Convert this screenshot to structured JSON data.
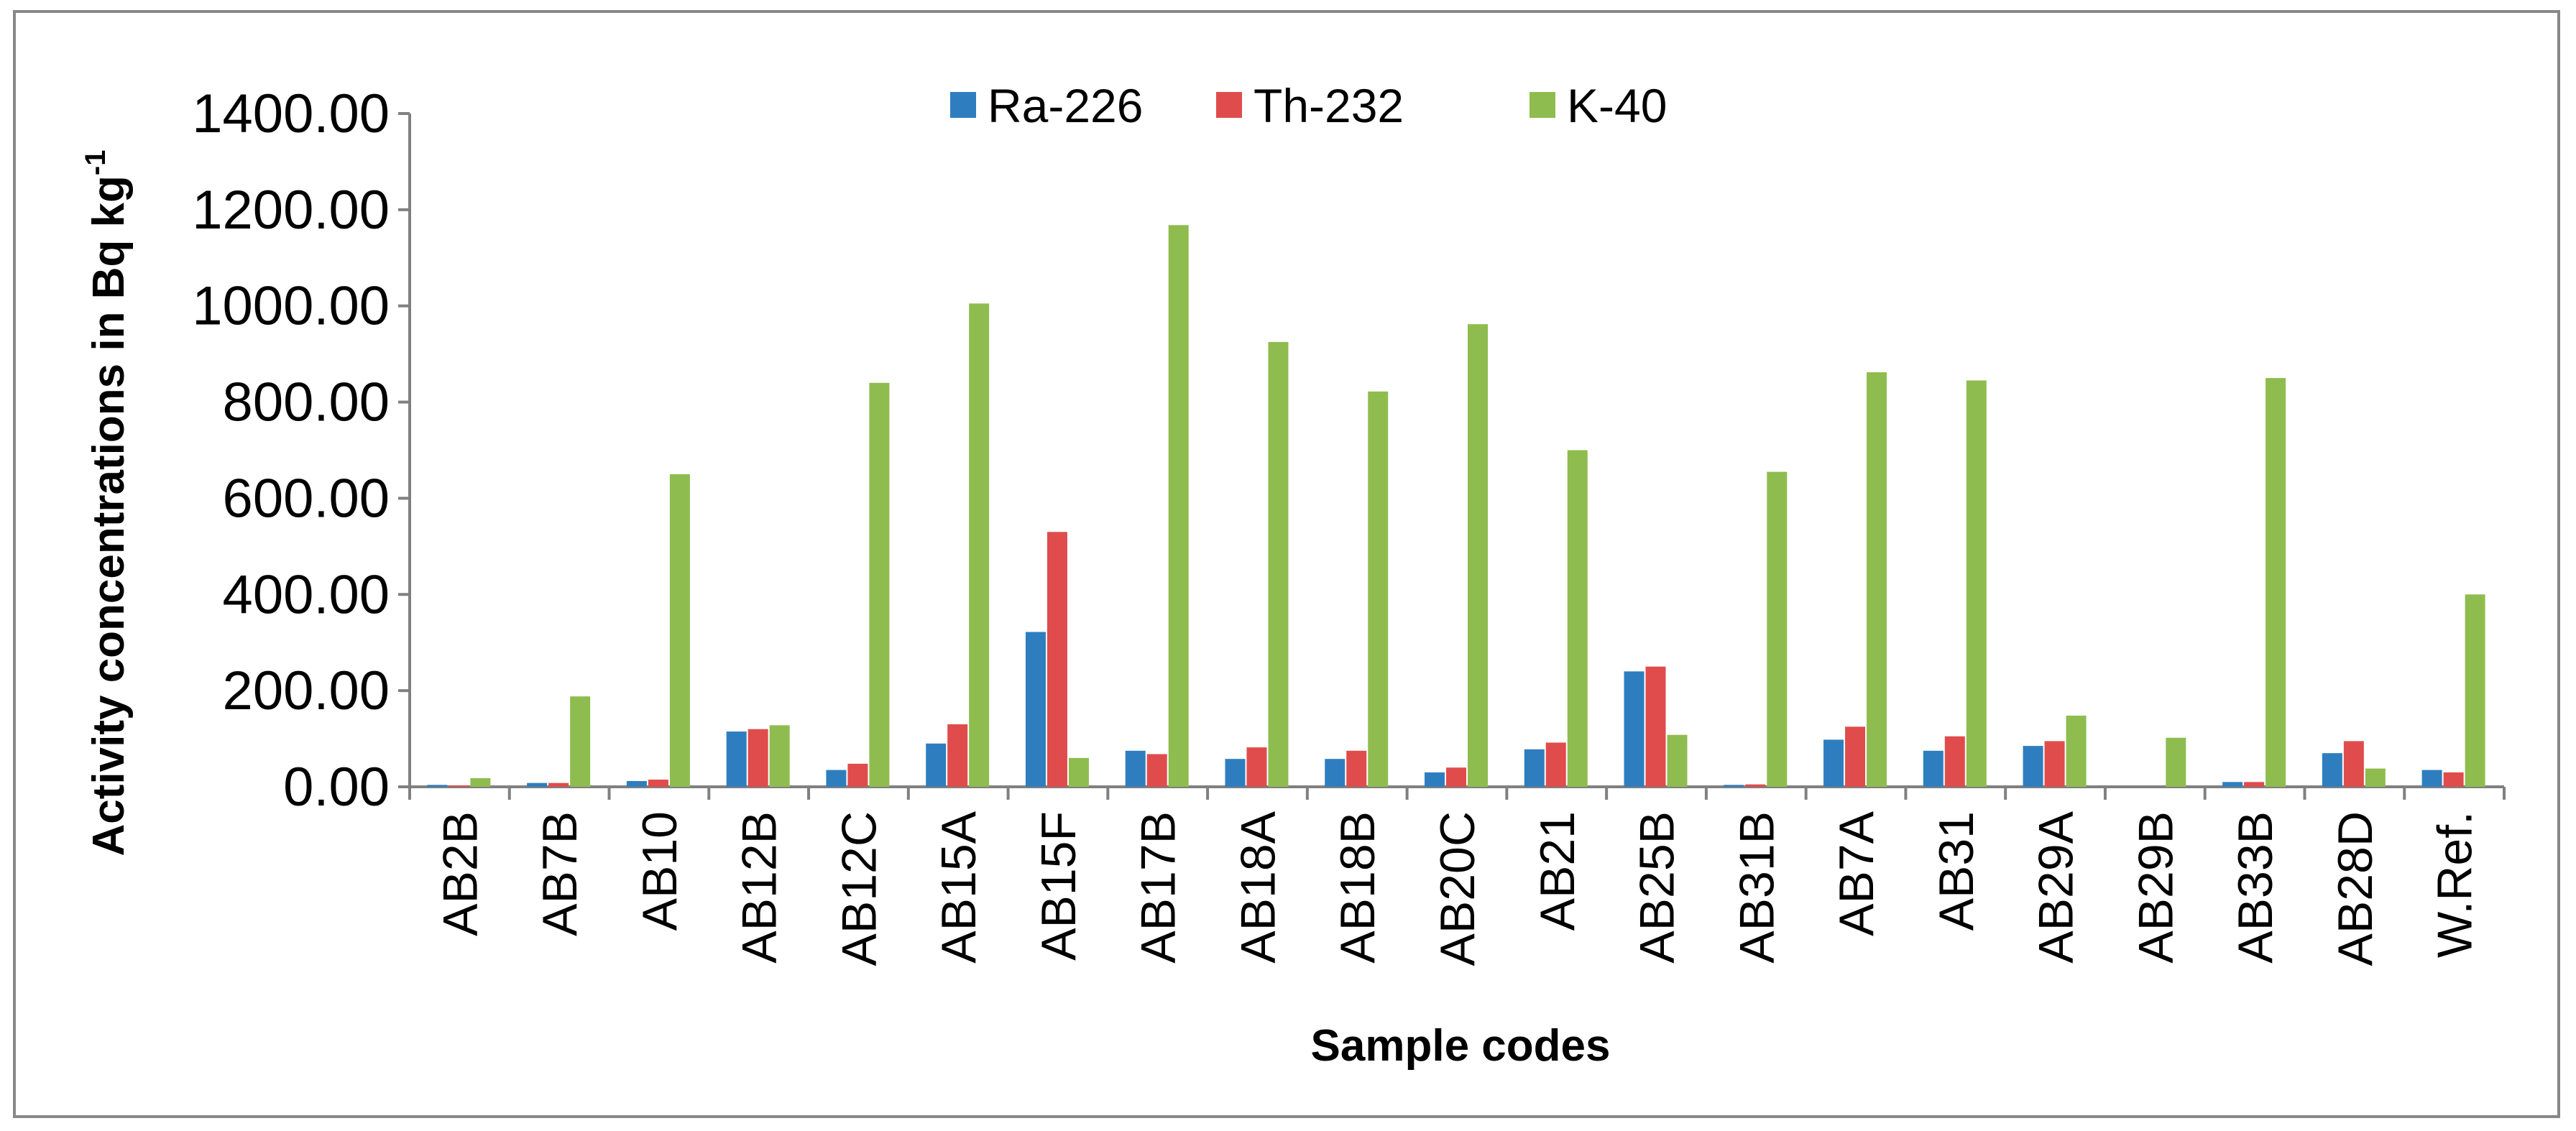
{
  "chart_data": {
    "type": "bar",
    "title": "",
    "xlabel": "Sample codes",
    "ylabel": "Activity concentrations in Bq kg",
    "ylabel_superscript": "-1",
    "ylim": [
      0,
      1400
    ],
    "yticks": [
      "0.00",
      "200.00",
      "400.00",
      "600.00",
      "800.00",
      "1000.00",
      "1200.00",
      "1400.00"
    ],
    "grid": false,
    "legend_position": "top-center",
    "categories": [
      "AB2B",
      "AB7B",
      "AB10",
      "AB12B",
      "AB12C",
      "AB15A",
      "AB15F",
      "AB17B",
      "AB18A",
      "AB18B",
      "AB20C",
      "AB21",
      "AB25B",
      "AB31B",
      "AB7A",
      "AB31",
      "AB29A",
      "AB29B",
      "AB33B",
      "AB28D",
      "W.Ref."
    ],
    "series": [
      {
        "name": "Ra-226",
        "color": "#2e7ebf",
        "values": [
          4,
          8,
          12,
          115,
          35,
          90,
          322,
          75,
          58,
          58,
          30,
          78,
          240,
          4,
          98,
          75,
          85,
          0,
          10,
          70,
          35
        ]
      },
      {
        "name": "Th-232",
        "color": "#e04c4c",
        "values": [
          3,
          8,
          15,
          120,
          48,
          130,
          530,
          68,
          82,
          75,
          40,
          92,
          250,
          5,
          125,
          105,
          95,
          0,
          10,
          95,
          30
        ]
      },
      {
        "name": "K-40",
        "color": "#8fbc4f",
        "values": [
          18,
          188,
          650,
          128,
          840,
          1005,
          60,
          1168,
          925,
          822,
          962,
          700,
          108,
          655,
          862,
          845,
          148,
          102,
          850,
          38,
          400
        ]
      }
    ]
  }
}
